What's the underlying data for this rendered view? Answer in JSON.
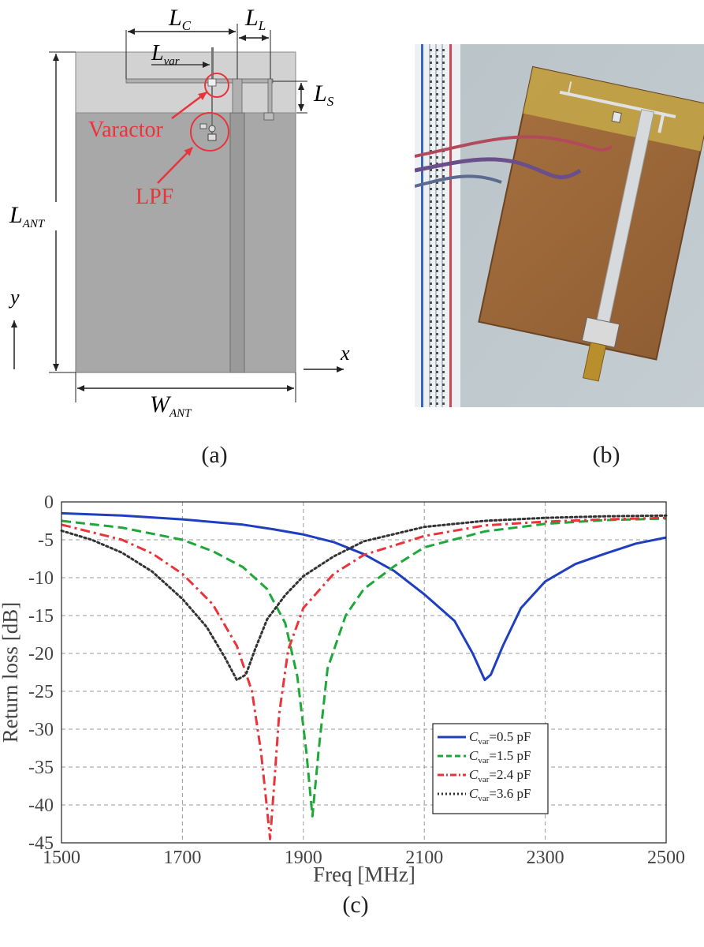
{
  "diagram": {
    "labels": {
      "lc_main": "L",
      "lc_sub": "C",
      "ll_main": "L",
      "ll_sub": "L",
      "lvar_main": "L",
      "lvar_sub": "var",
      "ls_main": "L",
      "ls_sub": "S",
      "lant_main": "L",
      "lant_sub": "ANT",
      "want_main": "W",
      "want_sub": "ANT",
      "varactor": "Varactor",
      "lpf": "LPF",
      "axis_x": "x",
      "axis_y": "y"
    },
    "colors": {
      "annotation": "#e8343a",
      "ground": "#a6a6a6",
      "top": "#cfcfcf",
      "strip": "#9c9c9c"
    }
  },
  "captions": {
    "a": "(a)",
    "b": "(b)",
    "c": "(c)"
  },
  "chart_data": {
    "type": "line",
    "xlabel": "Freq [MHz]",
    "ylabel": "Return loss [dB]",
    "xlim": [
      1500,
      2500
    ],
    "ylim": [
      -45,
      0
    ],
    "xticks": [
      1500,
      1700,
      1900,
      2100,
      2300,
      2500
    ],
    "yticks": [
      0,
      -5,
      -10,
      -15,
      -20,
      -25,
      -30,
      -35,
      -40,
      -45
    ],
    "grid": true,
    "legend_position": "lower-right",
    "series": [
      {
        "name_main": "C",
        "name_sub": "var",
        "name_rest": "=0.5 pF",
        "color": "#1f3fbf",
        "dash": "solid",
        "x": [
          1500,
          1600,
          1700,
          1800,
          1850,
          1900,
          1950,
          2000,
          2050,
          2100,
          2150,
          2180,
          2200,
          2210,
          2230,
          2260,
          2300,
          2350,
          2400,
          2450,
          2500
        ],
        "y": [
          -1.5,
          -1.8,
          -2.3,
          -3.0,
          -3.6,
          -4.3,
          -5.3,
          -6.9,
          -9.1,
          -12.2,
          -15.7,
          -20.0,
          -23.5,
          -22.8,
          -19.0,
          -14.0,
          -10.5,
          -8.2,
          -6.8,
          -5.5,
          -4.7
        ]
      },
      {
        "name_main": "C",
        "name_sub": "var",
        "name_rest": "=1.5 pF",
        "color": "#1fa83a",
        "dash": "dashed",
        "x": [
          1500,
          1600,
          1700,
          1750,
          1800,
          1840,
          1870,
          1890,
          1905,
          1915,
          1925,
          1940,
          1970,
          2000,
          2050,
          2100,
          2200,
          2300,
          2400,
          2500
        ],
        "y": [
          -2.5,
          -3.4,
          -5.0,
          -6.5,
          -8.6,
          -11.5,
          -16.0,
          -23.0,
          -33.0,
          -41.5,
          -33.0,
          -22.0,
          -15.0,
          -11.5,
          -8.5,
          -6.0,
          -3.9,
          -2.9,
          -2.4,
          -2.2
        ]
      },
      {
        "name_main": "C",
        "name_sub": "var",
        "name_rest": "=2.4 pF",
        "color": "#e8343a",
        "dash": "dashdot",
        "x": [
          1500,
          1600,
          1650,
          1700,
          1750,
          1790,
          1815,
          1830,
          1838,
          1845,
          1852,
          1860,
          1875,
          1900,
          1950,
          2000,
          2100,
          2200,
          2300,
          2400,
          2500
        ],
        "y": [
          -3.0,
          -5.0,
          -6.8,
          -9.5,
          -13.5,
          -19.0,
          -25.0,
          -33.0,
          -39.0,
          -44.5,
          -37.0,
          -28.0,
          -19.5,
          -14.0,
          -9.5,
          -7.0,
          -4.5,
          -3.1,
          -2.6,
          -2.3,
          -2.1
        ]
      },
      {
        "name_main": "C",
        "name_sub": "var",
        "name_rest": "=3.6 pF",
        "color": "#333333",
        "dash": "dotted",
        "x": [
          1500,
          1550,
          1600,
          1650,
          1700,
          1740,
          1770,
          1790,
          1805,
          1820,
          1840,
          1870,
          1900,
          1950,
          2000,
          2100,
          2200,
          2300,
          2400,
          2500
        ],
        "y": [
          -3.8,
          -5.0,
          -6.7,
          -9.2,
          -12.8,
          -16.5,
          -20.5,
          -23.5,
          -22.8,
          -19.5,
          -15.5,
          -12.3,
          -9.8,
          -7.2,
          -5.2,
          -3.3,
          -2.5,
          -2.1,
          -1.9,
          -1.8
        ]
      }
    ]
  }
}
